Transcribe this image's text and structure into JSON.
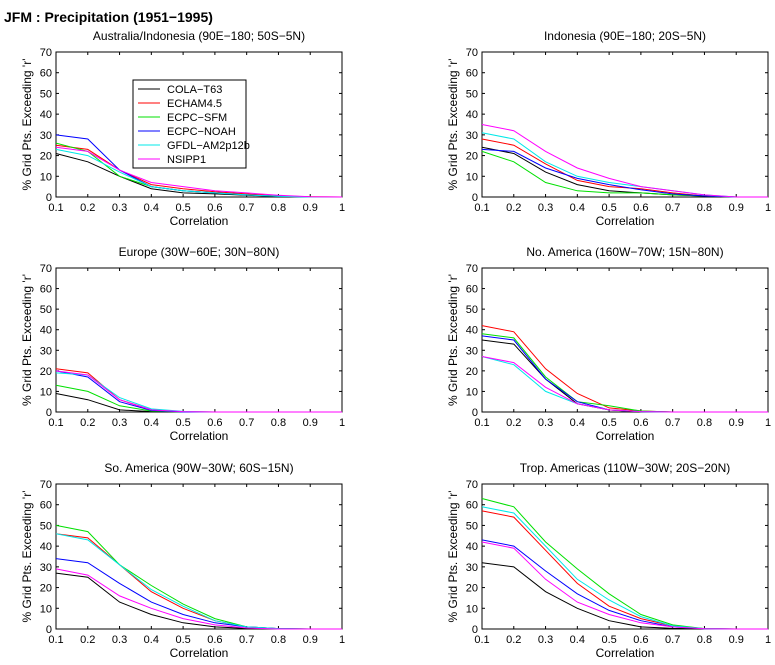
{
  "figure": {
    "title": "JFM : Precipitation (1951−1995)"
  },
  "colors": {
    "COLA-T63": "#000000",
    "ECHAM4.5": "#ff0000",
    "ECPC-SFM": "#00e000",
    "ECPC-NOAH": "#0000ff",
    "GFDL-AM2p12b": "#00e8e8",
    "NSIPP1": "#ff00ff"
  },
  "legend": {
    "entries": [
      "COLA−T63",
      "ECHAM4.5",
      "ECPC−SFM",
      "ECPC−NOAH",
      "GFDL−AM2p12b",
      "NSIPP1"
    ]
  },
  "chart_data": [
    {
      "type": "line",
      "title": "Australia/Indonesia (90E−180; 50S−5N)",
      "xlabel": "Correlation",
      "ylabel": "% Grid Pts. Exceeding 'r'",
      "x": [
        0.1,
        0.2,
        0.3,
        0.4,
        0.5,
        0.6,
        0.7,
        0.8,
        0.9,
        1.0
      ],
      "xticks": [
        "0.1",
        "0.2",
        "0.3",
        "0.4",
        "0.5",
        "0.6",
        "0.7",
        "0.8",
        "0.9",
        "1"
      ],
      "yticks": [
        "0",
        "10",
        "20",
        "30",
        "40",
        "50",
        "60",
        "70"
      ],
      "xlim": [
        0.1,
        1.0
      ],
      "ylim": [
        0,
        70
      ],
      "legend": "upper-left",
      "series": [
        {
          "key": "COLA-T63",
          "name": "COLA−T63",
          "values": [
            21,
            17,
            10,
            4,
            2,
            1.5,
            0.8,
            0.3,
            0,
            0
          ]
        },
        {
          "key": "ECHAM4.5",
          "name": "ECHAM4.5",
          "values": [
            25,
            23,
            13,
            6,
            4,
            2.5,
            1.5,
            0.5,
            0.1,
            0
          ]
        },
        {
          "key": "ECPC-SFM",
          "name": "ECPC−SFM",
          "values": [
            26,
            22,
            10,
            5,
            3,
            2,
            1,
            0.4,
            0,
            0
          ]
        },
        {
          "key": "ECPC-NOAH",
          "name": "ECPC−NOAH",
          "values": [
            30,
            28,
            13,
            5,
            3,
            2,
            1,
            0.4,
            0,
            0
          ]
        },
        {
          "key": "GFDL-AM2p12b",
          "name": "GFDL−AM2p12b",
          "values": [
            23,
            20,
            12,
            5,
            3,
            2,
            1,
            0.4,
            0,
            0
          ]
        },
        {
          "key": "NSIPP1",
          "name": "NSIPP1",
          "values": [
            24,
            22,
            13,
            7,
            5,
            3,
            2,
            0.8,
            0.1,
            0
          ]
        }
      ]
    },
    {
      "type": "line",
      "title": "Indonesia (90E−180; 20S−5N)",
      "xlabel": "Correlation",
      "ylabel": "% Grid Pts. Exceeding 'r'",
      "x": [
        0.1,
        0.2,
        0.3,
        0.4,
        0.5,
        0.6,
        0.7,
        0.8,
        0.9,
        1.0
      ],
      "xticks": [
        "0.1",
        "0.2",
        "0.3",
        "0.4",
        "0.5",
        "0.6",
        "0.7",
        "0.8",
        "0.9",
        "1"
      ],
      "yticks": [
        "0",
        "10",
        "20",
        "30",
        "40",
        "50",
        "60",
        "70"
      ],
      "xlim": [
        0.1,
        1.0
      ],
      "ylim": [
        0,
        70
      ],
      "series": [
        {
          "key": "COLA-T63",
          "name": "COLA−T63",
          "values": [
            24,
            21,
            12,
            6,
            3,
            2,
            1,
            0.5,
            0,
            0
          ]
        },
        {
          "key": "ECHAM4.5",
          "name": "ECHAM4.5",
          "values": [
            28,
            25,
            16,
            8,
            5,
            4,
            2,
            0.5,
            0,
            0
          ]
        },
        {
          "key": "ECPC-SFM",
          "name": "ECPC−SFM",
          "values": [
            22,
            17,
            7,
            3,
            2,
            2,
            1,
            0.5,
            0,
            0
          ]
        },
        {
          "key": "ECPC-NOAH",
          "name": "ECPC−NOAH",
          "values": [
            23,
            22,
            14,
            9,
            6,
            3.5,
            1.5,
            0.5,
            0,
            0
          ]
        },
        {
          "key": "GFDL-AM2p12b",
          "name": "GFDL−AM2p12b",
          "values": [
            31,
            28,
            17,
            10,
            7,
            5,
            3,
            1,
            0,
            0
          ]
        },
        {
          "key": "NSIPP1",
          "name": "NSIPP1",
          "values": [
            35,
            32,
            22,
            14,
            9,
            5,
            3,
            1,
            0,
            0
          ]
        }
      ]
    },
    {
      "type": "line",
      "title": "Europe (30W−60E; 30N−80N)",
      "xlabel": "Correlation",
      "ylabel": "% Grid Pts. Exceeding 'r'",
      "x": [
        0.1,
        0.2,
        0.3,
        0.4,
        0.5,
        0.6,
        0.7,
        0.8,
        0.9,
        1.0
      ],
      "xticks": [
        "0.1",
        "0.2",
        "0.3",
        "0.4",
        "0.5",
        "0.6",
        "0.7",
        "0.8",
        "0.9",
        "1"
      ],
      "yticks": [
        "0",
        "10",
        "20",
        "30",
        "40",
        "50",
        "60",
        "70"
      ],
      "xlim": [
        0.1,
        1.0
      ],
      "ylim": [
        0,
        70
      ],
      "series": [
        {
          "key": "COLA-T63",
          "name": "COLA−T63",
          "values": [
            9,
            6,
            1,
            0.2,
            0,
            0,
            0,
            0,
            0,
            0
          ]
        },
        {
          "key": "ECHAM4.5",
          "name": "ECHAM4.5",
          "values": [
            21,
            19,
            6,
            1,
            0.2,
            0,
            0,
            0,
            0,
            0
          ]
        },
        {
          "key": "ECPC-SFM",
          "name": "ECPC−SFM",
          "values": [
            13,
            10,
            3,
            0.5,
            0,
            0,
            0,
            0,
            0,
            0
          ]
        },
        {
          "key": "ECPC-NOAH",
          "name": "ECPC−NOAH",
          "values": [
            20,
            17,
            5,
            0.8,
            0,
            0,
            0,
            0,
            0,
            0
          ]
        },
        {
          "key": "GFDL-AM2p12b",
          "name": "GFDL−AM2p12b",
          "values": [
            19,
            18,
            7,
            1.5,
            0.3,
            0,
            0,
            0,
            0,
            0
          ]
        },
        {
          "key": "NSIPP1",
          "name": "NSIPP1",
          "values": [
            20,
            18,
            6,
            1,
            0.2,
            0,
            0,
            0,
            0,
            0
          ]
        }
      ]
    },
    {
      "type": "line",
      "title": "No. America (160W−70W; 15N−80N)",
      "xlabel": "Correlation",
      "ylabel": "% Grid Pts. Exceeding 'r'",
      "x": [
        0.1,
        0.2,
        0.3,
        0.4,
        0.5,
        0.6,
        0.7,
        0.8,
        0.9,
        1.0
      ],
      "xticks": [
        "0.1",
        "0.2",
        "0.3",
        "0.4",
        "0.5",
        "0.6",
        "0.7",
        "0.8",
        "0.9",
        "1"
      ],
      "yticks": [
        "0",
        "10",
        "20",
        "30",
        "40",
        "50",
        "60",
        "70"
      ],
      "xlim": [
        0.1,
        1.0
      ],
      "ylim": [
        0,
        70
      ],
      "series": [
        {
          "key": "COLA-T63",
          "name": "COLA−T63",
          "values": [
            35,
            33,
            16,
            4,
            1,
            0,
            0,
            0,
            0,
            0
          ]
        },
        {
          "key": "ECHAM4.5",
          "name": "ECHAM4.5",
          "values": [
            42,
            39,
            21,
            9,
            2,
            0.5,
            0,
            0,
            0,
            0
          ]
        },
        {
          "key": "ECPC-SFM",
          "name": "ECPC−SFM",
          "values": [
            38,
            36,
            17,
            5,
            3,
            0.5,
            0,
            0,
            0,
            0
          ]
        },
        {
          "key": "ECPC-NOAH",
          "name": "ECPC−NOAH",
          "values": [
            37,
            35,
            16,
            5,
            1,
            0.2,
            0,
            0,
            0,
            0
          ]
        },
        {
          "key": "GFDL-AM2p12b",
          "name": "GFDL−AM2p12b",
          "values": [
            27,
            23,
            10,
            4,
            1,
            0.2,
            0,
            0,
            0,
            0
          ]
        },
        {
          "key": "NSIPP1",
          "name": "NSIPP1",
          "values": [
            27,
            24,
            12,
            4,
            1,
            0.2,
            0,
            0,
            0,
            0
          ]
        }
      ]
    },
    {
      "type": "line",
      "title": "So. America (90W−30W; 60S−15N)",
      "xlabel": "Correlation",
      "ylabel": "% Grid Pts. Exceeding 'r'",
      "x": [
        0.1,
        0.2,
        0.3,
        0.4,
        0.5,
        0.6,
        0.7,
        0.8,
        0.9,
        1.0
      ],
      "xticks": [
        "0.1",
        "0.2",
        "0.3",
        "0.4",
        "0.5",
        "0.6",
        "0.7",
        "0.8",
        "0.9",
        "1"
      ],
      "yticks": [
        "0",
        "10",
        "20",
        "30",
        "40",
        "50",
        "60",
        "70"
      ],
      "xlim": [
        0.1,
        1.0
      ],
      "ylim": [
        0,
        70
      ],
      "series": [
        {
          "key": "COLA-T63",
          "name": "COLA−T63",
          "values": [
            27,
            25,
            13,
            7,
            3,
            1,
            0.3,
            0,
            0,
            0
          ]
        },
        {
          "key": "ECHAM4.5",
          "name": "ECHAM4.5",
          "values": [
            46,
            44,
            31,
            18,
            10,
            4,
            1,
            0.2,
            0,
            0
          ]
        },
        {
          "key": "ECPC-SFM",
          "name": "ECPC−SFM",
          "values": [
            50,
            47,
            31,
            21,
            12,
            5,
            1,
            0.2,
            0,
            0
          ]
        },
        {
          "key": "ECPC-NOAH",
          "name": "ECPC−NOAH",
          "values": [
            34,
            32,
            22,
            13,
            7,
            3,
            1,
            0.2,
            0,
            0
          ]
        },
        {
          "key": "GFDL-AM2p12b",
          "name": "GFDL−AM2p12b",
          "values": [
            46,
            43,
            31,
            19,
            11,
            4,
            1,
            0.2,
            0,
            0
          ]
        },
        {
          "key": "NSIPP1",
          "name": "NSIPP1",
          "values": [
            29,
            26,
            16,
            10,
            5,
            2,
            0.5,
            0,
            0,
            0
          ]
        }
      ]
    },
    {
      "type": "line",
      "title": "Trop. Americas (110W−30W; 20S−20N)",
      "xlabel": "Correlation",
      "ylabel": "% Grid Pts. Exceeding 'r'",
      "x": [
        0.1,
        0.2,
        0.3,
        0.4,
        0.5,
        0.6,
        0.7,
        0.8,
        0.9,
        1.0
      ],
      "xticks": [
        "0.1",
        "0.2",
        "0.3",
        "0.4",
        "0.5",
        "0.6",
        "0.7",
        "0.8",
        "0.9",
        "1"
      ],
      "yticks": [
        "0",
        "10",
        "20",
        "30",
        "40",
        "50",
        "60",
        "70"
      ],
      "xlim": [
        0.1,
        1.0
      ],
      "ylim": [
        0,
        70
      ],
      "series": [
        {
          "key": "COLA-T63",
          "name": "COLA−T63",
          "values": [
            32,
            30,
            18,
            10,
            4,
            1,
            0.3,
            0,
            0,
            0
          ]
        },
        {
          "key": "ECHAM4.5",
          "name": "ECHAM4.5",
          "values": [
            57,
            54,
            38,
            22,
            11,
            5,
            1.5,
            0.2,
            0,
            0
          ]
        },
        {
          "key": "ECPC-SFM",
          "name": "ECPC−SFM",
          "values": [
            63,
            59,
            42,
            29,
            17,
            7,
            2,
            0.2,
            0,
            0
          ]
        },
        {
          "key": "ECPC-NOAH",
          "name": "ECPC−NOAH",
          "values": [
            43,
            40,
            28,
            17,
            9,
            4,
            1,
            0.1,
            0,
            0
          ]
        },
        {
          "key": "GFDL-AM2p12b",
          "name": "GFDL−AM2p12b",
          "values": [
            59,
            56,
            40,
            24,
            14,
            6,
            1.5,
            0.2,
            0,
            0
          ]
        },
        {
          "key": "NSIPP1",
          "name": "NSIPP1",
          "values": [
            42,
            39,
            24,
            13,
            7,
            3,
            1,
            0.1,
            0,
            0
          ]
        }
      ]
    }
  ]
}
